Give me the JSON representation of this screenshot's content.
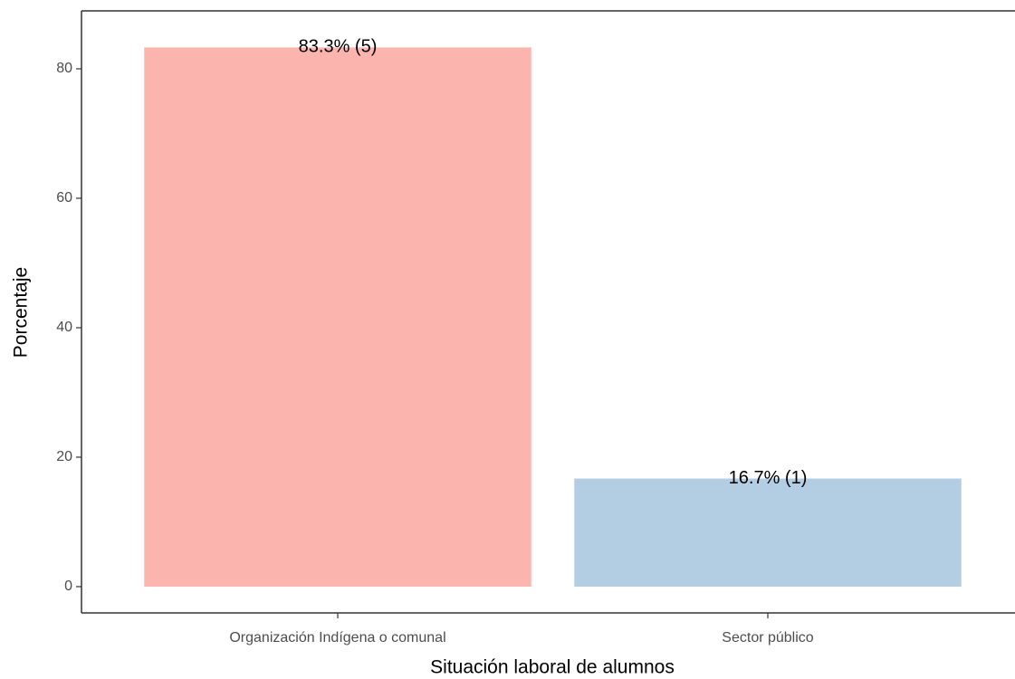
{
  "chart_data": {
    "type": "bar",
    "x_label": "Situación laboral de alumnos",
    "y_label": "Porcentaje",
    "categories": [
      "Organización Indígena o comunal",
      "Sector público"
    ],
    "values": [
      83.3,
      16.7
    ],
    "value_labels": [
      "83.3% (5)",
      "16.7% (1)"
    ],
    "colors": [
      "#fbb4ae",
      "#b3cde3"
    ],
    "ylim": [
      -4.06,
      88.95
    ],
    "yticks": [
      0,
      20,
      40,
      60,
      80
    ],
    "grid": false
  }
}
